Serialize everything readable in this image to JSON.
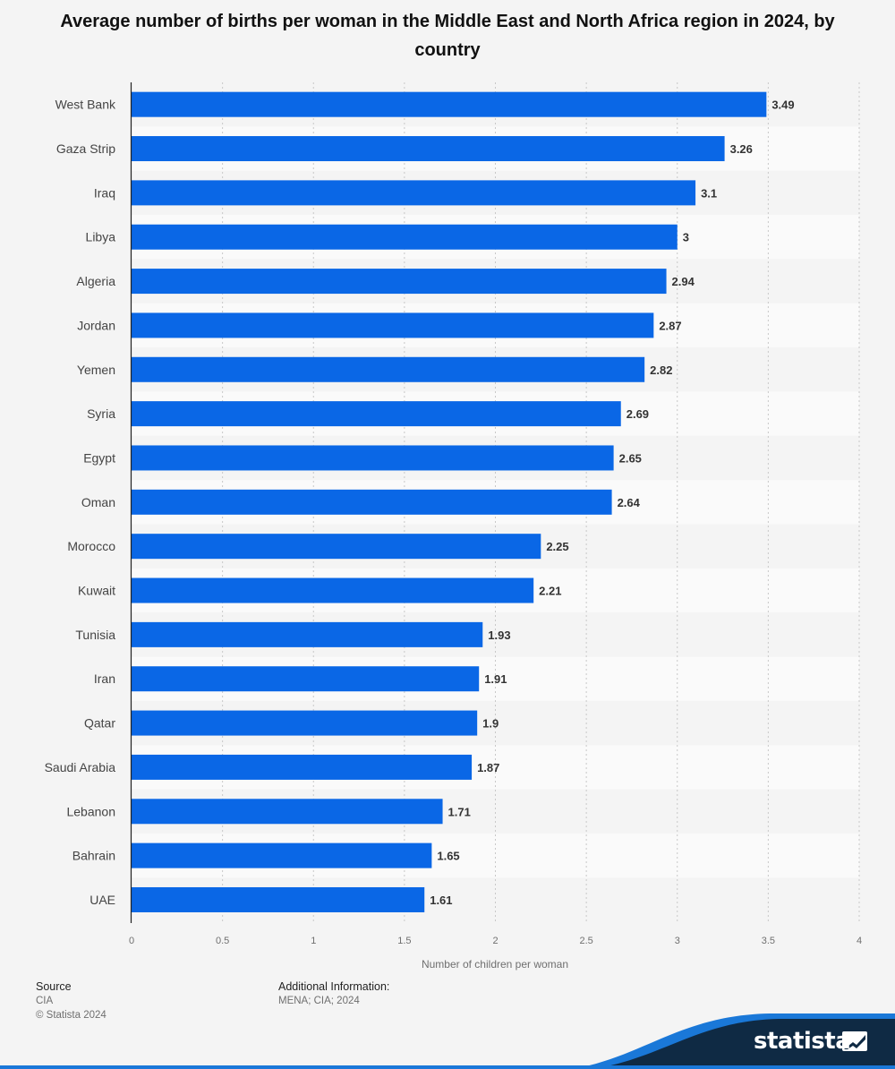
{
  "chart_data": {
    "type": "bar",
    "orientation": "horizontal",
    "title": "Average number of births per woman in the Middle East and North Africa region in 2024, by country",
    "xlabel": "Number of children per woman",
    "ylabel": "",
    "xlim": [
      0,
      4
    ],
    "x_ticks": [
      "0",
      "0.5",
      "1",
      "1.5",
      "2",
      "2.5",
      "3",
      "3.5",
      "4"
    ],
    "grid": "vertical dotted",
    "categories": [
      "West Bank",
      "Gaza Strip",
      "Iraq",
      "Libya",
      "Algeria",
      "Jordan",
      "Yemen",
      "Syria",
      "Egypt",
      "Oman",
      "Morocco",
      "Kuwait",
      "Tunisia",
      "Iran",
      "Qatar",
      "Saudi Arabia",
      "Lebanon",
      "Bahrain",
      "UAE"
    ],
    "values": [
      3.49,
      3.26,
      3.1,
      3,
      2.94,
      2.87,
      2.82,
      2.69,
      2.65,
      2.64,
      2.25,
      2.21,
      1.93,
      1.91,
      1.9,
      1.87,
      1.71,
      1.65,
      1.61
    ],
    "value_labels": [
      "3.49",
      "3.26",
      "3.1",
      "3",
      "2.94",
      "2.87",
      "2.82",
      "2.69",
      "2.65",
      "2.64",
      "2.25",
      "2.21",
      "1.93",
      "1.91",
      "1.9",
      "1.87",
      "1.71",
      "1.65",
      "1.61"
    ],
    "bar_color": "#0a67e6"
  },
  "footer": {
    "source_label": "Source",
    "source_value": "CIA",
    "copyright": "© Statista 2024",
    "info_label": "Additional Information:",
    "info_value": "MENA; CIA; 2024"
  },
  "brand": {
    "name": "statista",
    "logo_icon": "statista-logo-icon",
    "colors": {
      "navy": "#0f2a44",
      "accent": "#1a78d8"
    }
  }
}
